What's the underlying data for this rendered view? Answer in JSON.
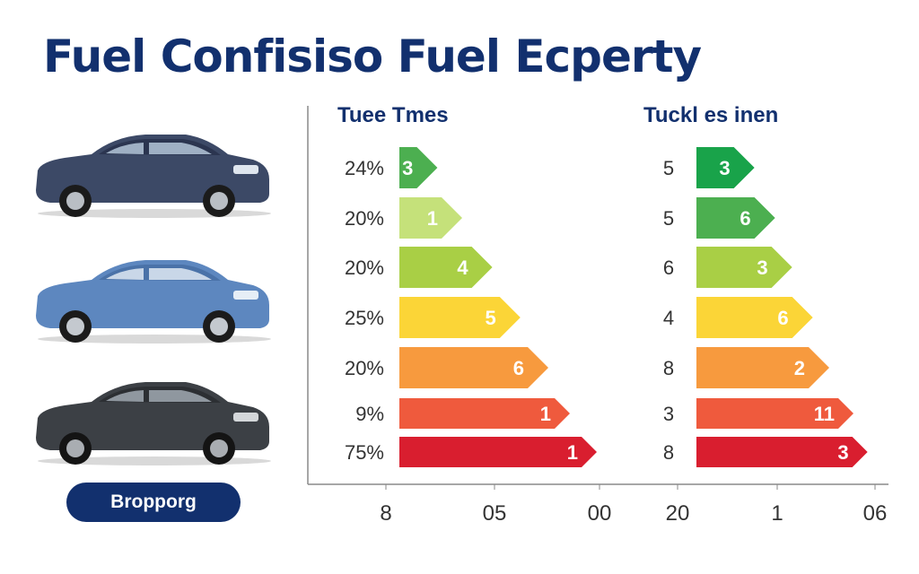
{
  "title": "Fuel Confisiso Fuel Ecperty",
  "button_label": "Bropporg",
  "cars": [
    {
      "name": "dark-blue-sedan-icon",
      "body": "#3c4966",
      "roof": "#2b3550"
    },
    {
      "name": "light-blue-sedan-icon",
      "body": "#5d87bf",
      "roof": "#4a72a8"
    },
    {
      "name": "dark-gray-sedan-icon",
      "body": "#3c4045",
      "roof": "#2c2f33"
    }
  ],
  "chart_data": [
    {
      "type": "bar",
      "title": "Tuee Tmes",
      "categories": [
        "24%",
        "20%",
        "20%",
        "25%",
        "20%",
        "9%",
        "75%"
      ],
      "values": [
        3,
        1,
        4,
        5,
        6,
        1,
        1
      ],
      "x_ticks": [
        "8",
        "05",
        "00"
      ],
      "colors": [
        "#4caf50",
        "#c5e17a",
        "#a9cf45",
        "#fbd537",
        "#f79a3e",
        "#ef5a3d",
        "#d91e2f"
      ]
    },
    {
      "type": "bar",
      "title": "Tuckl es inen",
      "categories": [
        "5",
        "5",
        "6",
        "4",
        "8",
        "3",
        "8"
      ],
      "values": [
        3,
        6,
        3,
        6,
        2,
        11,
        3
      ],
      "x_ticks": [
        "20",
        "1",
        "06"
      ],
      "colors": [
        "#19a34a",
        "#4caf50",
        "#a9cf45",
        "#fbd537",
        "#f79a3e",
        "#ef5a3d",
        "#d91e2f"
      ]
    }
  ]
}
